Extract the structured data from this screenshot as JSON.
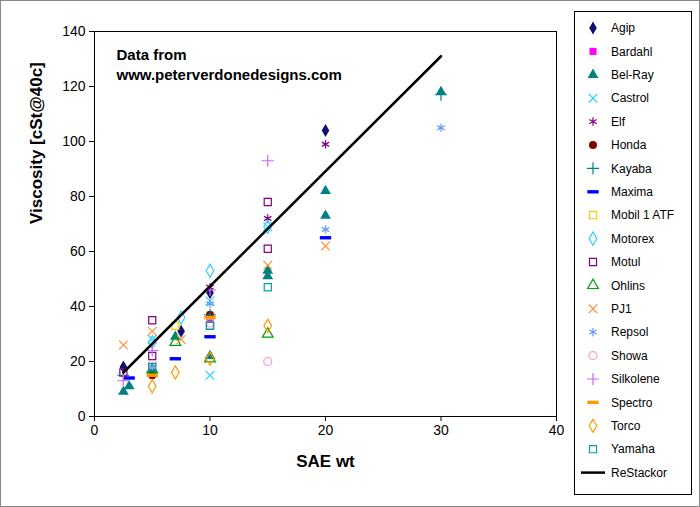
{
  "chart_data": {
    "type": "scatter",
    "annotations": [
      "Data from",
      "www.peterverdonedesigns.com"
    ],
    "x_label": "SAE wt",
    "y_label": "Viscosity [cSt@40c]",
    "xlim": [
      0,
      40
    ],
    "xticks": [
      0,
      10,
      20,
      30,
      40
    ],
    "ylim": [
      0,
      140
    ],
    "yticks": [
      0,
      20,
      40,
      60,
      80,
      100,
      120,
      140
    ],
    "legend": "right",
    "series": [
      {
        "name": "Agip",
        "color": "#12126e",
        "marker": "diamond",
        "x": [
          2.5,
          7.5,
          10,
          20
        ],
        "values": [
          18,
          31,
          45,
          104
        ]
      },
      {
        "name": "Bardahl",
        "color": "#ff00ff",
        "marker": "square",
        "x": [
          10
        ],
        "values": [
          36
        ]
      },
      {
        "name": "Bel-Ray",
        "color": "#008080",
        "marker": "triangle",
        "x": [
          2.5,
          3,
          5,
          7,
          10,
          15,
          15,
          20,
          20,
          30
        ],
        "values": [
          9,
          11,
          17,
          29,
          22,
          51,
          53,
          73,
          82,
          118
        ]
      },
      {
        "name": "Castrol",
        "color": "#22d8f0",
        "marker": "times",
        "x": [
          5,
          10,
          10,
          15
        ],
        "values": [
          28,
          15,
          42,
          69
        ]
      },
      {
        "name": "Elf",
        "color": "#800080",
        "marker": "asterisk",
        "x": [
          10,
          15,
          20
        ],
        "values": [
          47,
          72,
          99
        ]
      },
      {
        "name": "Honda",
        "color": "#800000",
        "marker": "circle",
        "x": [
          5,
          10
        ],
        "values": [
          15,
          37
        ]
      },
      {
        "name": "Kayaba",
        "color": "#008080",
        "marker": "plus",
        "x": [
          2.5,
          10,
          30
        ],
        "values": [
          15,
          37,
          117
        ]
      },
      {
        "name": "Maxima",
        "color": "#0000ff",
        "marker": "dash",
        "x": [
          3,
          7,
          10,
          20
        ],
        "values": [
          14,
          21,
          29,
          65
        ]
      },
      {
        "name": "Mobil 1 ATF",
        "color": "#f0d000",
        "marker": "square-open",
        "x": [
          7
        ],
        "values": [
          33
        ]
      },
      {
        "name": "Motorex",
        "color": "#33ccff",
        "marker": "diamond-open",
        "x": [
          5,
          7.5,
          10,
          15
        ],
        "values": [
          27,
          36,
          53,
          69
        ]
      },
      {
        "name": "Motul",
        "color": "#800080",
        "marker": "square-open",
        "x": [
          2.5,
          5,
          5,
          10,
          15,
          15
        ],
        "values": [
          16,
          35,
          22,
          33,
          61,
          78
        ]
      },
      {
        "name": "Ohlins",
        "color": "#00a000",
        "marker": "triangle-open",
        "x": [
          5,
          7,
          10,
          15
        ],
        "values": [
          17,
          27,
          21,
          30
        ]
      },
      {
        "name": "PJ1",
        "color": "#ff8c33",
        "marker": "times",
        "x": [
          2.5,
          5,
          7.5,
          15,
          20
        ],
        "values": [
          26,
          31,
          28,
          55,
          62
        ]
      },
      {
        "name": "Repsol",
        "color": "#6699ff",
        "marker": "asterisk",
        "x": [
          5,
          10,
          20,
          30
        ],
        "values": [
          18,
          41,
          68,
          105
        ]
      },
      {
        "name": "Showa",
        "color": "#ff99cc",
        "marker": "circle-open",
        "x": [
          5,
          10,
          15
        ],
        "values": [
          19,
          34,
          20
        ]
      },
      {
        "name": "Silkolene",
        "color": "#cc66ff",
        "marker": "plus",
        "x": [
          2.5,
          5,
          10,
          15
        ],
        "values": [
          13,
          24,
          46,
          93
        ]
      },
      {
        "name": "Spectro",
        "color": "#ff9900",
        "marker": "dash",
        "x": [
          5,
          10
        ],
        "values": [
          15,
          36
        ]
      },
      {
        "name": "Torco",
        "color": "#ff9900",
        "marker": "diamond-open",
        "x": [
          5,
          7,
          10,
          15
        ],
        "values": [
          11,
          16,
          21,
          33
        ]
      },
      {
        "name": "Yamaha",
        "color": "#00a0a0",
        "marker": "square-open",
        "x": [
          5,
          10,
          15
        ],
        "values": [
          18,
          33,
          47
        ]
      },
      {
        "name": "ReStackor",
        "color": "#000000",
        "type": "line",
        "x": [
          2.5,
          30
        ],
        "values": [
          16,
          131
        ]
      }
    ]
  }
}
